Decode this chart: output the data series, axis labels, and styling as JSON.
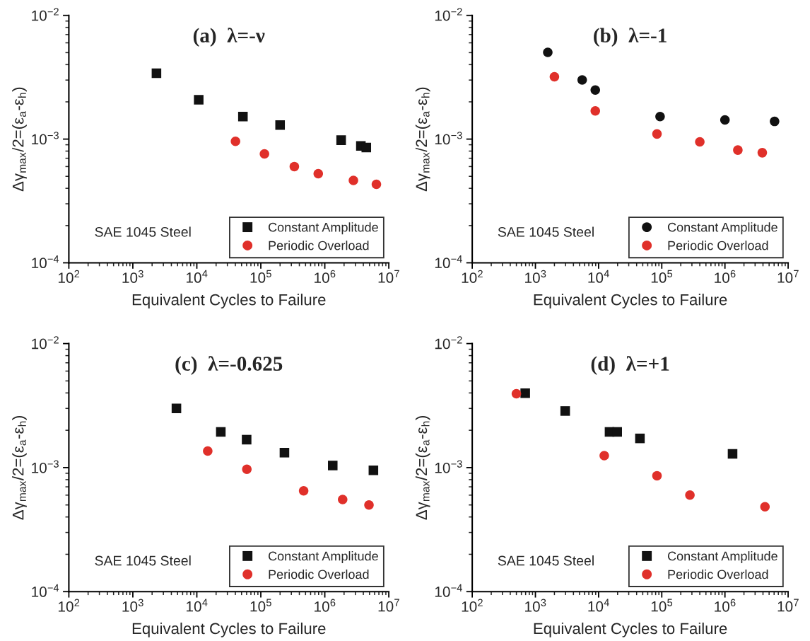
{
  "chart_data": [
    {
      "type": "scatter",
      "title": "(a)  λ=-ν",
      "xlabel": "Equivalent Cycles to Failure",
      "ylabel": "Δγ$_{max}$/2=(ε$_{a}$-ε$_{h}$)",
      "annotations": [
        "SAE 1045 Steel"
      ],
      "log": "xy",
      "legend": "bottom right",
      "grid": false,
      "xlim": [
        100,
        10000000
      ],
      "ylim": [
        0.0001,
        0.01
      ],
      "xticks": [
        {
          "value": 100,
          "label": "10$^{2}$"
        },
        {
          "value": 1000,
          "label": "10$^{3}$"
        },
        {
          "value": 10000,
          "label": "10$^{4}$"
        },
        {
          "value": 100000,
          "label": "10$^{5}$"
        },
        {
          "value": 1000000,
          "label": "10$^{6}$"
        },
        {
          "value": 10000000,
          "label": "10$^{7}$"
        }
      ],
      "yticks": [
        {
          "value": 0.0001,
          "label": "10$^{−4}$"
        },
        {
          "value": 0.001,
          "label": "10$^{−3}$"
        },
        {
          "value": 0.01,
          "label": "10$^{−2}$"
        }
      ],
      "series": [
        {
          "name": "Constant Amplitude",
          "color": "#111111",
          "marker": "square",
          "x": [
            2340,
            10700,
            52500,
            200000,
            1800000,
            3660000,
            4450000
          ],
          "values": [
            0.00341,
            0.00208,
            0.00152,
            0.0013,
            0.00098,
            0.00088,
            0.000855
          ]
        },
        {
          "name": "Periodic Overload",
          "color": "#e0302a",
          "marker": "circle",
          "x": [
            40200,
            114000,
            334000,
            790000,
            2800000,
            6400000
          ],
          "values": [
            0.00096,
            0.00076,
            0.0006,
            0.000525,
            0.000463,
            0.000431
          ]
        }
      ]
    },
    {
      "type": "scatter",
      "title": "(b)  λ=-1",
      "xlabel": "Equivalent Cycles to Failure",
      "ylabel": "Δγ$_{max}$/2=(ε$_{a}$-ε$_{h}$)",
      "annotations": [
        "SAE 1045 Steel"
      ],
      "log": "xy",
      "legend": "bottom right",
      "grid": false,
      "xlim": [
        100,
        10000000
      ],
      "ylim": [
        0.0001,
        0.01
      ],
      "xticks": [
        {
          "value": 100,
          "label": "10$^{2}$"
        },
        {
          "value": 1000,
          "label": "10$^{3}$"
        },
        {
          "value": 10000,
          "label": "10$^{4}$"
        },
        {
          "value": 100000,
          "label": "10$^{5}$"
        },
        {
          "value": 1000000,
          "label": "10$^{6}$"
        },
        {
          "value": 10000000,
          "label": "10$^{7}$"
        }
      ],
      "yticks": [
        {
          "value": 0.0001,
          "label": "10$^{−4}$"
        },
        {
          "value": 0.001,
          "label": "10$^{−3}$"
        },
        {
          "value": 0.01,
          "label": "10$^{−2}$"
        }
      ],
      "series": [
        {
          "name": "Constant Amplitude",
          "color": "#111111",
          "marker": "circle",
          "x": [
            1570,
            5500,
            8870,
            94000,
            1000000,
            6100000
          ],
          "values": [
            0.00502,
            0.00301,
            0.00249,
            0.00152,
            0.00143,
            0.00139
          ]
        },
        {
          "name": "Periodic Overload",
          "color": "#e0302a",
          "marker": "circle",
          "x": [
            2000,
            8870,
            84000,
            400000,
            1600000,
            3900000
          ],
          "values": [
            0.00319,
            0.00169,
            0.0011,
            0.00095,
            0.000815,
            0.000776
          ]
        }
      ]
    },
    {
      "type": "scatter",
      "title": "(c)  λ=-0.625",
      "xlabel": "Equivalent Cycles to Failure",
      "ylabel": "Δγ$_{max}$/2=(ε$_{a}$-ε$_{h}$)",
      "annotations": [
        "SAE 1045 Steel"
      ],
      "log": "xy",
      "legend": "bottom right",
      "grid": false,
      "xlim": [
        100,
        10000000
      ],
      "ylim": [
        0.0001,
        0.01
      ],
      "xticks": [
        {
          "value": 100,
          "label": "10$^{2}$"
        },
        {
          "value": 1000,
          "label": "10$^{3}$"
        },
        {
          "value": 10000,
          "label": "10$^{4}$"
        },
        {
          "value": 100000,
          "label": "10$^{5}$"
        },
        {
          "value": 1000000,
          "label": "10$^{6}$"
        },
        {
          "value": 10000000,
          "label": "10$^{7}$"
        }
      ],
      "yticks": [
        {
          "value": 0.0001,
          "label": "10$^{−4}$"
        },
        {
          "value": 0.001,
          "label": "10$^{−3}$"
        },
        {
          "value": 0.01,
          "label": "10$^{−2}$"
        }
      ],
      "series": [
        {
          "name": "Constant Amplitude",
          "color": "#111111",
          "marker": "square",
          "x": [
            4800,
            23700,
            60000,
            234000,
            1330000,
            5750000
          ],
          "values": [
            0.003,
            0.00194,
            0.00168,
            0.00132,
            0.00104,
            0.00095
          ]
        },
        {
          "name": "Periodic Overload",
          "color": "#e0302a",
          "marker": "circle",
          "x": [
            14800,
            60500,
            467000,
            1900000,
            4900000
          ],
          "values": [
            0.00136,
            0.00097,
            0.00065,
            0.000553,
            0.0005
          ]
        }
      ]
    },
    {
      "type": "scatter",
      "title": "(d)  λ=+1",
      "xlabel": "Equivalent Cycles to Failure",
      "ylabel": "Δγ$_{max}$/2=(ε$_{a}$-ε$_{h}$)",
      "annotations": [
        "SAE 1045 Steel"
      ],
      "log": "xy",
      "legend": "bottom right",
      "grid": false,
      "xlim": [
        100,
        10000000
      ],
      "ylim": [
        0.0001,
        0.01
      ],
      "xticks": [
        {
          "value": 100,
          "label": "10$^{2}$"
        },
        {
          "value": 1000,
          "label": "10$^{3}$"
        },
        {
          "value": 10000,
          "label": "10$^{4}$"
        },
        {
          "value": 100000,
          "label": "10$^{5}$"
        },
        {
          "value": 1000000,
          "label": "10$^{6}$"
        },
        {
          "value": 10000000,
          "label": "10$^{7}$"
        }
      ],
      "yticks": [
        {
          "value": 0.0001,
          "label": "10$^{−4}$"
        },
        {
          "value": 0.001,
          "label": "10$^{−3}$"
        },
        {
          "value": 0.01,
          "label": "10$^{−2}$"
        }
      ],
      "series": [
        {
          "name": "Constant Amplitude",
          "color": "#111111",
          "marker": "square",
          "x": [
            690,
            2960,
            14900,
            19700,
            45100,
            1320000
          ],
          "values": [
            0.00398,
            0.00286,
            0.00194,
            0.00194,
            0.00172,
            0.00129
          ]
        },
        {
          "name": "Periodic Overload",
          "color": "#e0302a",
          "marker": "circle",
          "x": [
            500,
            12300,
            84000,
            279000,
            4300000
          ],
          "values": [
            0.00394,
            0.00125,
            0.00086,
            0.0006,
            0.000483
          ]
        }
      ]
    }
  ]
}
